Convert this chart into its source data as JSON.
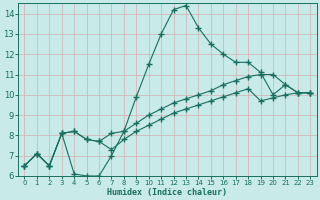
{
  "xlabel": "Humidex (Indice chaleur)",
  "background_color": "#c8eae8",
  "grid_color": "#b0d0d0",
  "line_color": "#1a6e60",
  "xlim": [
    -0.5,
    23.5
  ],
  "ylim": [
    6,
    14.5
  ],
  "xtick_min": 0,
  "xtick_max": 23,
  "yticks": [
    6,
    7,
    8,
    9,
    10,
    11,
    12,
    13,
    14
  ],
  "line1_x": [
    0,
    1,
    2,
    3,
    4,
    5,
    6,
    7,
    8,
    9,
    10,
    11,
    12,
    13,
    14,
    15,
    16,
    17,
    18,
    19,
    20,
    21,
    22,
    23
  ],
  "line1_y": [
    6.5,
    7.1,
    6.5,
    8.1,
    6.1,
    6.0,
    6.0,
    7.0,
    8.2,
    9.9,
    11.5,
    13.0,
    14.2,
    14.4,
    13.3,
    12.5,
    12.0,
    11.6,
    11.6,
    11.1,
    10.0,
    10.5,
    10.1,
    10.1
  ],
  "line2_x": [
    0,
    1,
    2,
    3,
    4,
    5,
    6,
    7,
    8,
    9,
    10,
    11,
    12,
    13,
    14,
    15,
    16,
    17,
    18,
    19,
    20,
    21,
    22,
    23
  ],
  "line2_y": [
    6.5,
    7.1,
    6.5,
    8.1,
    8.2,
    7.8,
    7.7,
    8.1,
    8.2,
    8.6,
    9.0,
    9.3,
    9.6,
    9.8,
    10.0,
    10.2,
    10.5,
    10.7,
    10.9,
    11.0,
    11.0,
    10.5,
    10.1,
    10.1
  ],
  "line3_x": [
    0,
    1,
    2,
    3,
    4,
    5,
    6,
    7,
    8,
    9,
    10,
    11,
    12,
    13,
    14,
    15,
    16,
    17,
    18,
    19,
    20,
    21,
    22,
    23
  ],
  "line3_y": [
    6.5,
    7.1,
    6.5,
    8.1,
    8.2,
    7.8,
    7.7,
    7.3,
    7.8,
    8.2,
    8.5,
    8.8,
    9.1,
    9.3,
    9.5,
    9.7,
    9.9,
    10.1,
    10.3,
    9.7,
    9.85,
    10.0,
    10.1,
    10.1
  ]
}
